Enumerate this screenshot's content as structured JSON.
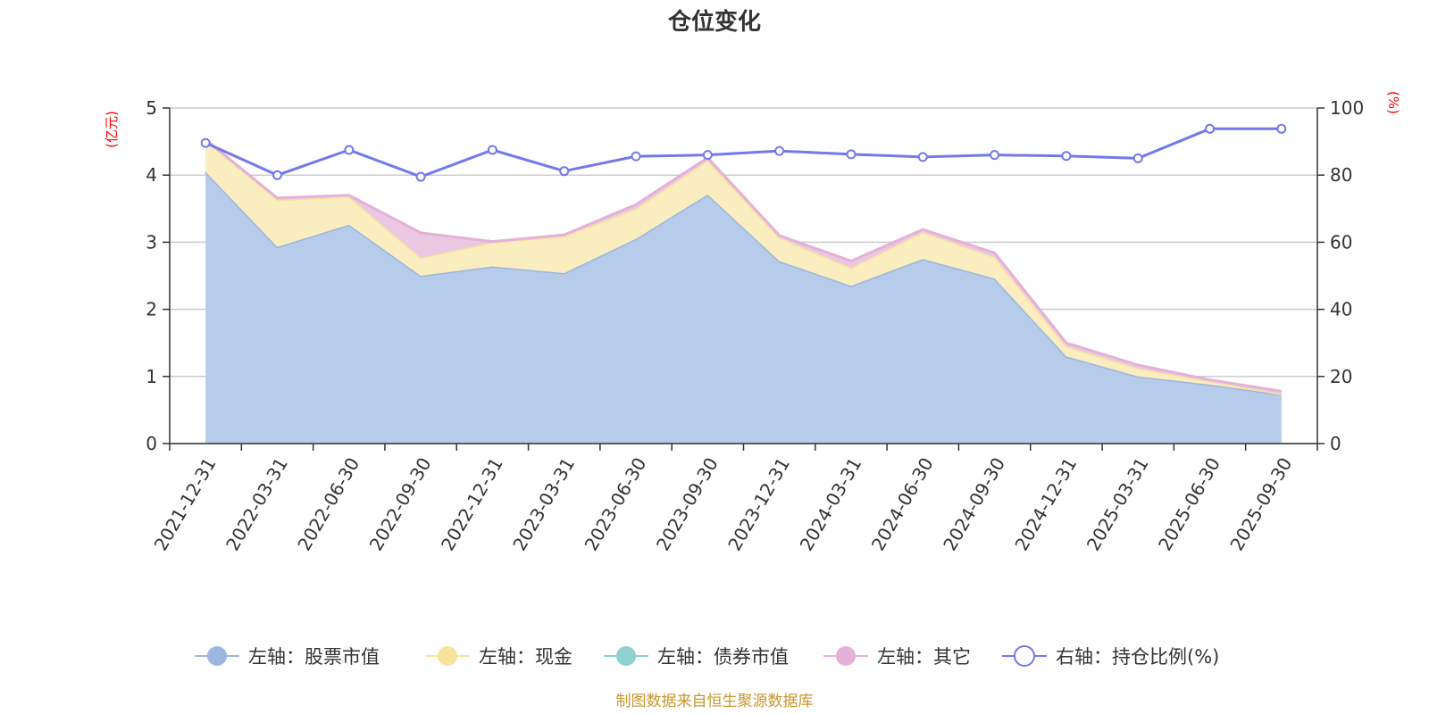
{
  "chart_data": {
    "type": "area",
    "title": "仓位变化",
    "categories": [
      "2021-12-31",
      "2022-03-31",
      "2022-06-30",
      "2022-09-30",
      "2022-12-31",
      "2023-03-31",
      "2023-06-30",
      "2023-09-30",
      "2023-12-31",
      "2024-03-31",
      "2024-06-30",
      "2024-09-30",
      "2024-12-31",
      "2025-03-31",
      "2025-06-30",
      "2025-09-30"
    ],
    "left_axis": {
      "unit": "(亿元)",
      "ylim": [
        0,
        5
      ],
      "ticks": [
        "0",
        "1",
        "2",
        "3",
        "4",
        "5"
      ]
    },
    "right_axis": {
      "unit": "(%)",
      "ylim": [
        0,
        100
      ],
      "ticks": [
        "0",
        "20",
        "40",
        "60",
        "80",
        "100"
      ]
    },
    "series": [
      {
        "name": "左轴：股票市值",
        "axis": "left",
        "stacked": true,
        "color": "#9bb7e0",
        "fill": "#b7cbea",
        "values": [
          4.05,
          2.93,
          3.26,
          2.5,
          2.64,
          2.54,
          3.05,
          3.71,
          2.72,
          2.35,
          2.75,
          2.46,
          1.3,
          1.0,
          0.88,
          0.73
        ]
      },
      {
        "name": "左轴：现金",
        "axis": "left",
        "stacked": true,
        "color": "#f7e39c",
        "fill": "#faedbf",
        "values": [
          0.47,
          0.7,
          0.42,
          0.27,
          0.36,
          0.55,
          0.45,
          0.51,
          0.35,
          0.27,
          0.4,
          0.32,
          0.15,
          0.12,
          0.05,
          0.01
        ]
      },
      {
        "name": "左轴：债券市值",
        "axis": "left",
        "stacked": true,
        "color": "#8fd0d0",
        "fill": "#bde3e3",
        "values": [
          0,
          0,
          0,
          0,
          0,
          0,
          0,
          0,
          0,
          0,
          0,
          0,
          0,
          0,
          0,
          0
        ]
      },
      {
        "name": "左轴：其它",
        "axis": "left",
        "stacked": true,
        "color": "#e4b1d8",
        "fill": "#ebc8e2",
        "values": [
          0.01,
          0.03,
          0.02,
          0.37,
          0.01,
          0.02,
          0.06,
          0.04,
          0.03,
          0.1,
          0.04,
          0.06,
          0.05,
          0.05,
          0.02,
          0.04
        ]
      },
      {
        "name": "右轴：持仓比例(%)",
        "axis": "right",
        "type": "line",
        "color": "#7279ea",
        "values": [
          89.6,
          80.0,
          87.5,
          79.5,
          87.5,
          81.2,
          85.6,
          86.0,
          87.2,
          86.2,
          85.4,
          86.0,
          85.7,
          85.0,
          93.8,
          93.8
        ]
      }
    ],
    "grid": true,
    "legend_position": "bottom-center"
  },
  "footer": {
    "source": "制图数据来自恒生聚源数据库"
  }
}
